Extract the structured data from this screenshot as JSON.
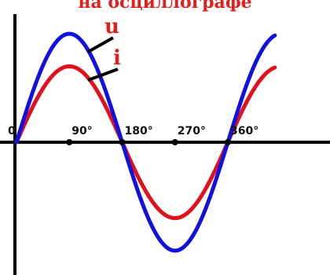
{
  "chart_data": {
    "type": "line",
    "title": "на осциллографе",
    "x_unit": "degrees",
    "x_ticks": [
      {
        "value": 0,
        "label": "0"
      },
      {
        "value": 90,
        "label": "90°"
      },
      {
        "value": 180,
        "label": "180°"
      },
      {
        "value": 270,
        "label": "270°"
      },
      {
        "value": 360,
        "label": "360°"
      }
    ],
    "xlim": [
      0,
      440
    ],
    "ylim": [
      -1.0,
      1.0
    ],
    "series": [
      {
        "name": "u",
        "color": "#1010e0",
        "amplitude": 1.0,
        "phase_deg": 0,
        "x_range": [
          0,
          440
        ]
      },
      {
        "name": "i",
        "color": "#e0101c",
        "amplitude": 0.7,
        "phase_deg": 0,
        "x_range": [
          0,
          440
        ]
      }
    ],
    "axes_color": "#000000"
  }
}
